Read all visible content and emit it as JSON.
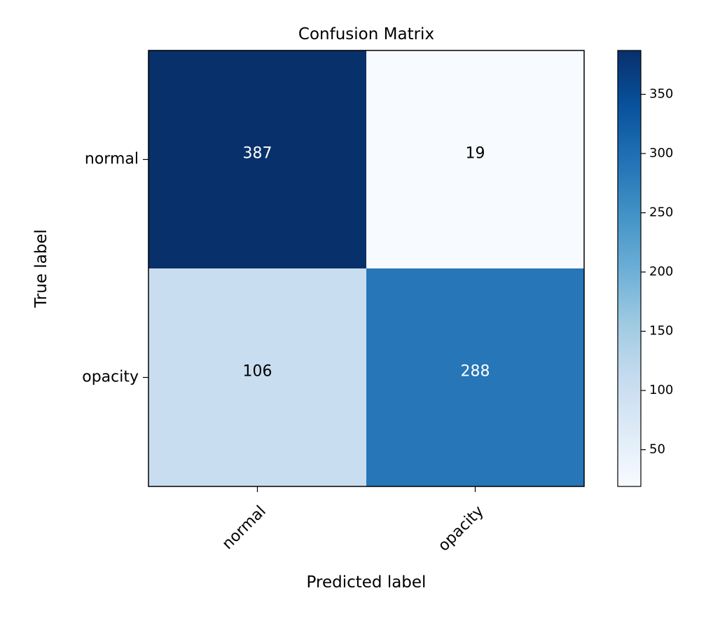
{
  "chart_data": {
    "type": "heatmap",
    "title": "Confusion Matrix",
    "xlabel": "Predicted label",
    "ylabel": "True label",
    "x_categories": [
      "normal",
      "opacity"
    ],
    "y_categories": [
      "normal",
      "opacity"
    ],
    "values": [
      [
        387,
        19
      ],
      [
        106,
        288
      ]
    ],
    "colormap": "Blues",
    "color_range": [
      19,
      387
    ],
    "colorbar_ticks": [
      50,
      100,
      150,
      200,
      250,
      300,
      350
    ],
    "colorbar_position": "right",
    "x_tick_rotation_deg": 45,
    "grid": false
  }
}
